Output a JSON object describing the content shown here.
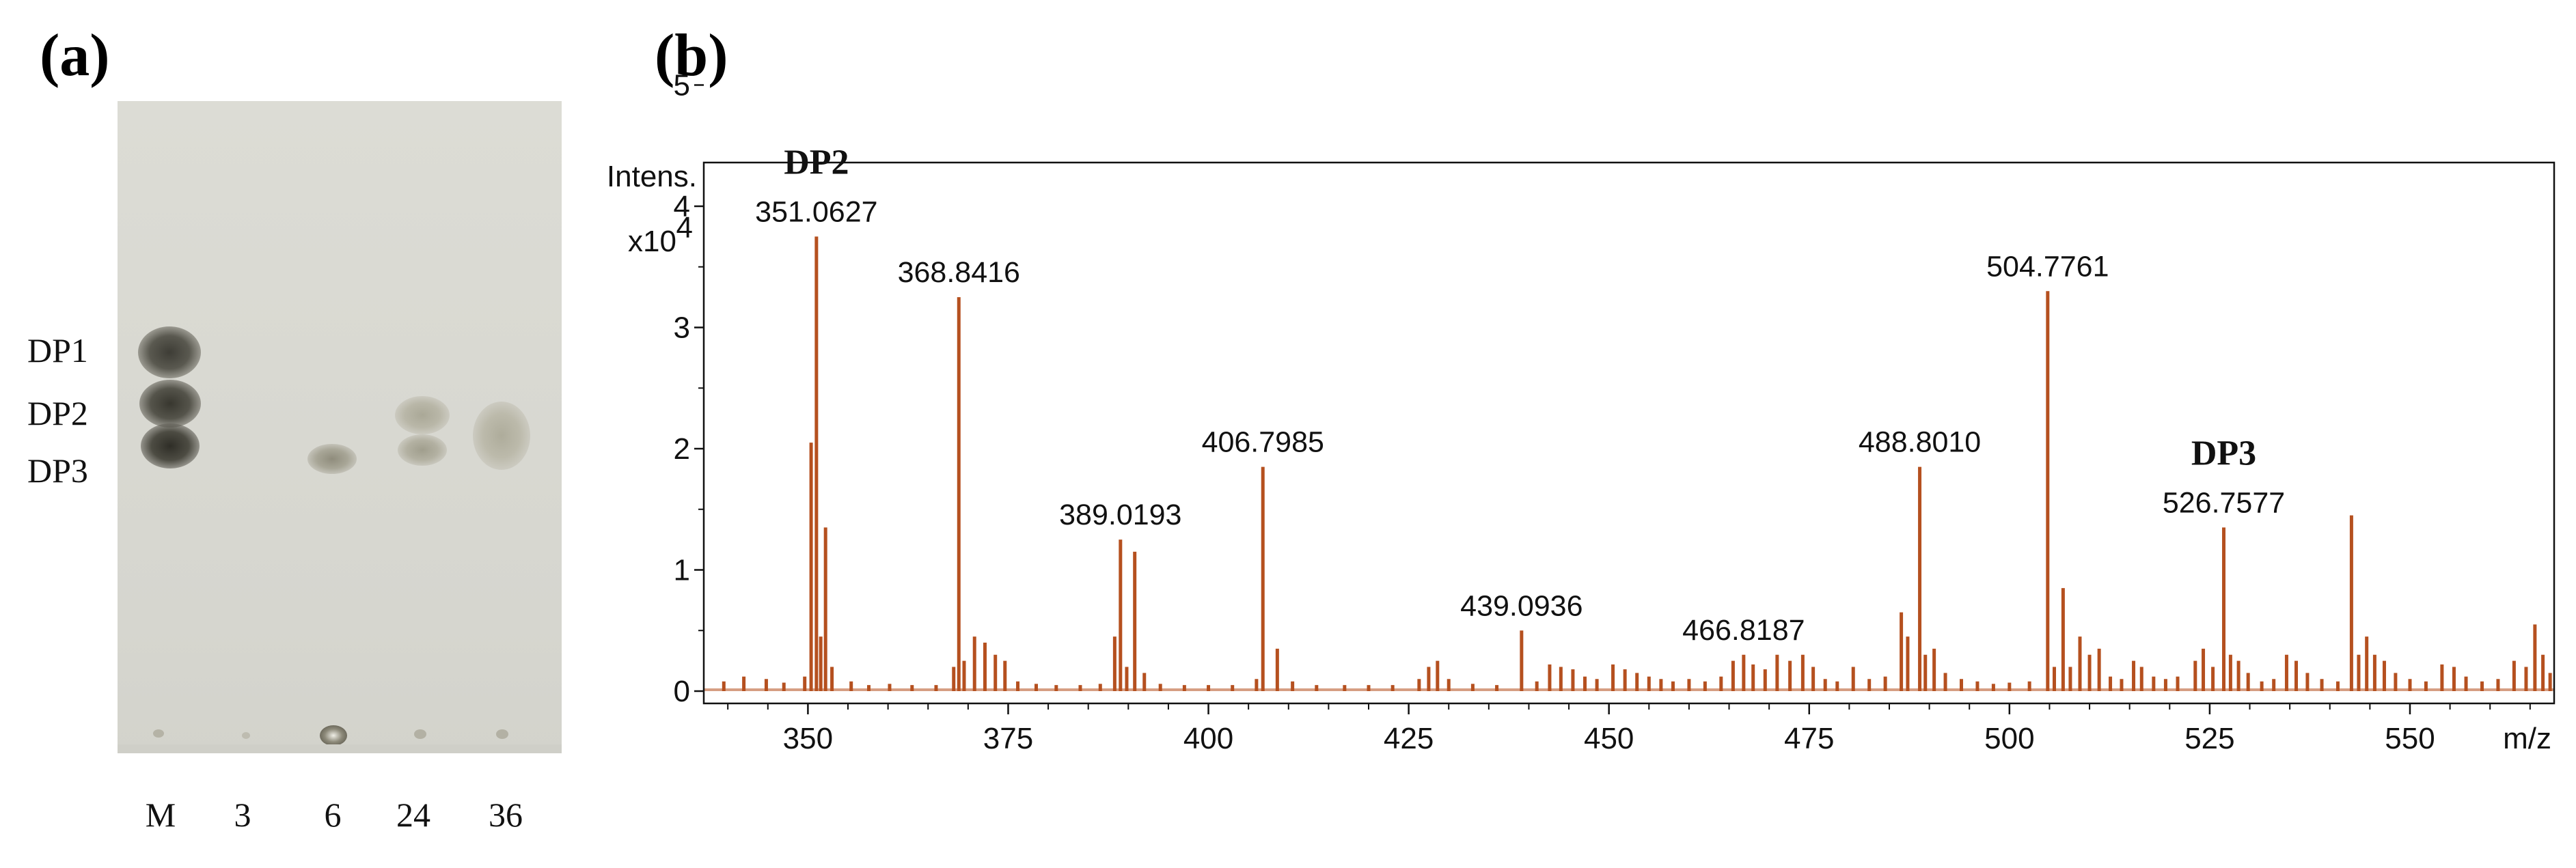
{
  "panels": {
    "a": "(a)",
    "b": "(b)"
  },
  "tlc": {
    "marker_labels": [
      "DP1",
      "DP2",
      "DP3"
    ],
    "lane_labels": [
      "M",
      "3",
      "6",
      "24",
      "36"
    ]
  },
  "chart_data": {
    "type": "bar",
    "title": "",
    "xlabel": "m/z",
    "ylabel": "Intens.",
    "y_multiplier": "x10",
    "y_exponent": "4",
    "xlim": [
      337,
      568
    ],
    "ylim": [
      0,
      6
    ],
    "x_ticks": [
      350,
      375,
      400,
      425,
      450,
      475,
      500,
      525,
      550
    ],
    "y_ticks": [
      0,
      1,
      2,
      3,
      4,
      5
    ],
    "bar_color": "#b5501f",
    "annotations": [
      {
        "text": "351.0627",
        "x": 351.0627,
        "y": 3.75
      },
      {
        "text": "368.8416",
        "x": 368.8416,
        "y": 3.25
      },
      {
        "text": "389.0193",
        "x": 389.0193,
        "y": 1.25
      },
      {
        "text": "406.7985",
        "x": 406.7985,
        "y": 1.85
      },
      {
        "text": "439.0936",
        "x": 439.0936,
        "y": 0.5
      },
      {
        "text": "466.8187",
        "x": 466.8187,
        "y": 0.3
      },
      {
        "text": "488.8010",
        "x": 488.801,
        "y": 1.85
      },
      {
        "text": "504.7761",
        "x": 504.7761,
        "y": 3.3
      },
      {
        "text": "526.7577",
        "x": 526.7577,
        "y": 1.35
      }
    ],
    "group_labels": [
      {
        "text": "DP2",
        "x": 351.0627
      },
      {
        "text": "DP3",
        "x": 526.7577
      }
    ],
    "peaks": [
      {
        "x": 339.5,
        "y": 0.08
      },
      {
        "x": 342.0,
        "y": 0.12
      },
      {
        "x": 344.8,
        "y": 0.1
      },
      {
        "x": 347.0,
        "y": 0.07
      },
      {
        "x": 349.6,
        "y": 0.12
      },
      {
        "x": 350.4,
        "y": 2.05
      },
      {
        "x": 351.0627,
        "y": 3.75
      },
      {
        "x": 351.6,
        "y": 0.45
      },
      {
        "x": 352.2,
        "y": 1.35
      },
      {
        "x": 353.0,
        "y": 0.2
      },
      {
        "x": 355.4,
        "y": 0.08
      },
      {
        "x": 357.6,
        "y": 0.05
      },
      {
        "x": 360.2,
        "y": 0.06
      },
      {
        "x": 363.0,
        "y": 0.05
      },
      {
        "x": 366.0,
        "y": 0.05
      },
      {
        "x": 368.2,
        "y": 0.2
      },
      {
        "x": 368.8416,
        "y": 3.25
      },
      {
        "x": 369.5,
        "y": 0.25
      },
      {
        "x": 370.8,
        "y": 0.45
      },
      {
        "x": 372.1,
        "y": 0.4
      },
      {
        "x": 373.4,
        "y": 0.3
      },
      {
        "x": 374.6,
        "y": 0.25
      },
      {
        "x": 376.2,
        "y": 0.08
      },
      {
        "x": 378.5,
        "y": 0.06
      },
      {
        "x": 381.0,
        "y": 0.05
      },
      {
        "x": 384.0,
        "y": 0.05
      },
      {
        "x": 386.5,
        "y": 0.06
      },
      {
        "x": 388.3,
        "y": 0.45
      },
      {
        "x": 389.0193,
        "y": 1.25
      },
      {
        "x": 389.8,
        "y": 0.2
      },
      {
        "x": 390.8,
        "y": 1.15
      },
      {
        "x": 392.0,
        "y": 0.15
      },
      {
        "x": 394.0,
        "y": 0.06
      },
      {
        "x": 397.0,
        "y": 0.05
      },
      {
        "x": 400.0,
        "y": 0.05
      },
      {
        "x": 403.0,
        "y": 0.05
      },
      {
        "x": 406.0,
        "y": 0.1
      },
      {
        "x": 406.7985,
        "y": 1.85
      },
      {
        "x": 408.6,
        "y": 0.35
      },
      {
        "x": 410.5,
        "y": 0.08
      },
      {
        "x": 413.5,
        "y": 0.05
      },
      {
        "x": 417.0,
        "y": 0.05
      },
      {
        "x": 420.0,
        "y": 0.05
      },
      {
        "x": 423.0,
        "y": 0.05
      },
      {
        "x": 426.3,
        "y": 0.1
      },
      {
        "x": 427.5,
        "y": 0.2
      },
      {
        "x": 428.6,
        "y": 0.25
      },
      {
        "x": 430.0,
        "y": 0.1
      },
      {
        "x": 433.0,
        "y": 0.06
      },
      {
        "x": 436.0,
        "y": 0.05
      },
      {
        "x": 439.0936,
        "y": 0.5
      },
      {
        "x": 441.0,
        "y": 0.08
      },
      {
        "x": 442.6,
        "y": 0.22
      },
      {
        "x": 444.0,
        "y": 0.2
      },
      {
        "x": 445.5,
        "y": 0.18
      },
      {
        "x": 447.0,
        "y": 0.12
      },
      {
        "x": 448.5,
        "y": 0.1
      },
      {
        "x": 450.5,
        "y": 0.22
      },
      {
        "x": 452.0,
        "y": 0.18
      },
      {
        "x": 453.5,
        "y": 0.15
      },
      {
        "x": 455.0,
        "y": 0.12
      },
      {
        "x": 456.5,
        "y": 0.1
      },
      {
        "x": 458.0,
        "y": 0.08
      },
      {
        "x": 460.0,
        "y": 0.1
      },
      {
        "x": 462.0,
        "y": 0.08
      },
      {
        "x": 464.0,
        "y": 0.12
      },
      {
        "x": 465.5,
        "y": 0.25
      },
      {
        "x": 466.8187,
        "y": 0.3
      },
      {
        "x": 468.0,
        "y": 0.22
      },
      {
        "x": 469.5,
        "y": 0.18
      },
      {
        "x": 471.0,
        "y": 0.3
      },
      {
        "x": 472.6,
        "y": 0.25
      },
      {
        "x": 474.2,
        "y": 0.3
      },
      {
        "x": 475.5,
        "y": 0.2
      },
      {
        "x": 477.0,
        "y": 0.1
      },
      {
        "x": 478.5,
        "y": 0.08
      },
      {
        "x": 480.5,
        "y": 0.2
      },
      {
        "x": 482.5,
        "y": 0.1
      },
      {
        "x": 484.5,
        "y": 0.12
      },
      {
        "x": 486.5,
        "y": 0.65
      },
      {
        "x": 487.3,
        "y": 0.45
      },
      {
        "x": 488.801,
        "y": 1.85
      },
      {
        "x": 489.5,
        "y": 0.3
      },
      {
        "x": 490.6,
        "y": 0.35
      },
      {
        "x": 492.0,
        "y": 0.15
      },
      {
        "x": 494.0,
        "y": 0.1
      },
      {
        "x": 496.0,
        "y": 0.08
      },
      {
        "x": 498.0,
        "y": 0.06
      },
      {
        "x": 500.0,
        "y": 0.07
      },
      {
        "x": 502.5,
        "y": 0.08
      },
      {
        "x": 504.7761,
        "y": 3.3
      },
      {
        "x": 505.6,
        "y": 0.2
      },
      {
        "x": 506.7,
        "y": 0.85
      },
      {
        "x": 507.6,
        "y": 0.2
      },
      {
        "x": 508.8,
        "y": 0.45
      },
      {
        "x": 510.0,
        "y": 0.3
      },
      {
        "x": 511.2,
        "y": 0.35
      },
      {
        "x": 512.6,
        "y": 0.12
      },
      {
        "x": 514.0,
        "y": 0.1
      },
      {
        "x": 515.5,
        "y": 0.25
      },
      {
        "x": 516.5,
        "y": 0.2
      },
      {
        "x": 518.0,
        "y": 0.12
      },
      {
        "x": 519.5,
        "y": 0.1
      },
      {
        "x": 521.0,
        "y": 0.12
      },
      {
        "x": 523.2,
        "y": 0.25
      },
      {
        "x": 524.2,
        "y": 0.35
      },
      {
        "x": 525.4,
        "y": 0.2
      },
      {
        "x": 526.7577,
        "y": 1.35
      },
      {
        "x": 527.6,
        "y": 0.3
      },
      {
        "x": 528.6,
        "y": 0.25
      },
      {
        "x": 529.8,
        "y": 0.15
      },
      {
        "x": 531.5,
        "y": 0.08
      },
      {
        "x": 533.0,
        "y": 0.1
      },
      {
        "x": 534.6,
        "y": 0.3
      },
      {
        "x": 535.8,
        "y": 0.25
      },
      {
        "x": 537.2,
        "y": 0.15
      },
      {
        "x": 539.0,
        "y": 0.1
      },
      {
        "x": 541.0,
        "y": 0.08
      },
      {
        "x": 542.7,
        "y": 1.45
      },
      {
        "x": 543.6,
        "y": 0.3
      },
      {
        "x": 544.6,
        "y": 0.45
      },
      {
        "x": 545.6,
        "y": 0.3
      },
      {
        "x": 546.8,
        "y": 0.25
      },
      {
        "x": 548.2,
        "y": 0.15
      },
      {
        "x": 550.0,
        "y": 0.1
      },
      {
        "x": 552.0,
        "y": 0.08
      },
      {
        "x": 554.0,
        "y": 0.22
      },
      {
        "x": 555.5,
        "y": 0.2
      },
      {
        "x": 557.0,
        "y": 0.12
      },
      {
        "x": 559.0,
        "y": 0.08
      },
      {
        "x": 561.0,
        "y": 0.1
      },
      {
        "x": 563.0,
        "y": 0.25
      },
      {
        "x": 564.5,
        "y": 0.2
      },
      {
        "x": 565.6,
        "y": 0.55
      },
      {
        "x": 566.6,
        "y": 0.3
      },
      {
        "x": 567.5,
        "y": 0.15
      }
    ]
  }
}
